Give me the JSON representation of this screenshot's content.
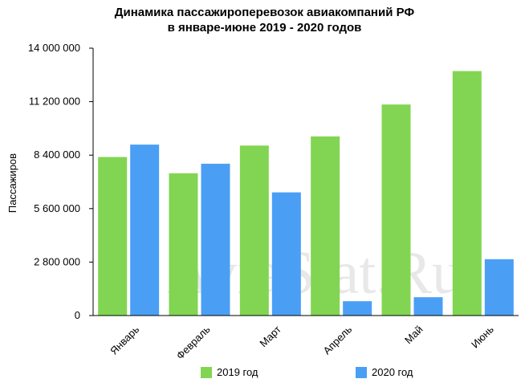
{
  "chart_data": {
    "type": "bar",
    "title_line1": "Динамика пассажироперевозок авиакомпаний РФ",
    "title_line2": "в январе-июне 2019 - 2020 годов",
    "xlabel": "",
    "ylabel": "Пассажиров",
    "ylim": [
      0,
      14000000
    ],
    "yticks": [
      0,
      2800000,
      5600000,
      8400000,
      11200000,
      14000000
    ],
    "ytick_labels": [
      "0",
      "2 800 000",
      "5 600 000",
      "8 400 000",
      "11 200 000",
      "14 000 000"
    ],
    "categories": [
      "Январь",
      "Февраль",
      "Март",
      "Апрель",
      "Май",
      "Июнь"
    ],
    "series": [
      {
        "name": "2019 год",
        "color": "#82d552",
        "values": [
          8300000,
          7450000,
          8900000,
          9380000,
          11050000,
          12800000
        ]
      },
      {
        "name": "2020 год",
        "color": "#4a9ff5",
        "values": [
          8950000,
          7950000,
          6450000,
          750000,
          960000,
          2950000
        ]
      }
    ],
    "grid": false,
    "legend_position": "bottom",
    "watermark": "AviaStat.Ru"
  }
}
